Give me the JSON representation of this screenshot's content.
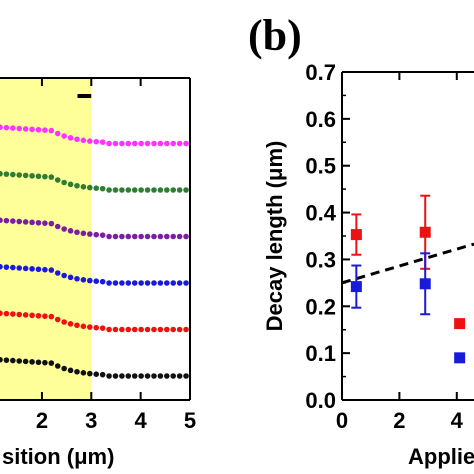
{
  "panel_label": "(b)",
  "chart_data": [
    {
      "type": "line",
      "title": "",
      "xlabel": "sition (μm)",
      "ylabel": "",
      "xlim": [
        1.15,
        5
      ],
      "x_ticks": [
        2,
        3,
        4,
        5
      ],
      "x_tick_labels": [
        "2",
        "3",
        "4",
        "5"
      ],
      "highlight_region": {
        "x_start": 1.15,
        "x_end": 3.0,
        "color": "#ffff99"
      },
      "scale_bar": {
        "x_start": 2.72,
        "x_end": 3.0
      },
      "grid": false,
      "series": [
        {
          "color": "#ff33ff",
          "baseline": 6,
          "bump_amplitude": 0.35
        },
        {
          "color": "#2e7d32",
          "baseline": 5,
          "bump_amplitude": 0.35
        },
        {
          "color": "#7b1fa2",
          "baseline": 4,
          "bump_amplitude": 0.35
        },
        {
          "color": "#1a1adb",
          "baseline": 3,
          "bump_amplitude": 0.35
        },
        {
          "color": "#ee1111",
          "baseline": 2,
          "bump_amplitude": 0.35
        },
        {
          "color": "#111111",
          "baseline": 1,
          "bump_amplitude": 0.35
        }
      ]
    },
    {
      "type": "scatter",
      "title": "",
      "xlabel": "Applied",
      "ylabel": "Decay length (μm)",
      "xlim": [
        0,
        4.6
      ],
      "ylim": [
        0,
        0.7
      ],
      "y_ticks": [
        0.0,
        0.1,
        0.2,
        0.3,
        0.4,
        0.5,
        0.6,
        0.7
      ],
      "y_tick_labels": [
        "0.0",
        "0.1",
        "0.2",
        "0.3",
        "0.4",
        "0.5",
        "0.6",
        "0.7"
      ],
      "x_ticks": [
        0,
        2,
        4
      ],
      "x_tick_labels": [
        "0",
        "2",
        "4"
      ],
      "grid": false,
      "series": [
        {
          "color": "#ee1111",
          "points": [
            {
              "x": 0.5,
              "y": 0.353,
              "err": 0.043
            },
            {
              "x": 2.9,
              "y": 0.358,
              "err": 0.078
            },
            {
              "x": 4.1,
              "y": 0.163,
              "err": 0
            }
          ]
        },
        {
          "color": "#1a1adb",
          "points": [
            {
              "x": 0.5,
              "y": 0.242,
              "err": 0.045
            },
            {
              "x": 2.9,
              "y": 0.248,
              "err": 0.065
            },
            {
              "x": 4.1,
              "y": 0.09,
              "err": 0
            }
          ]
        }
      ],
      "trend_line": {
        "x": [
          0,
          5
        ],
        "y": [
          0.25,
          0.34
        ],
        "style": "dashed",
        "color": "#000000"
      }
    }
  ]
}
